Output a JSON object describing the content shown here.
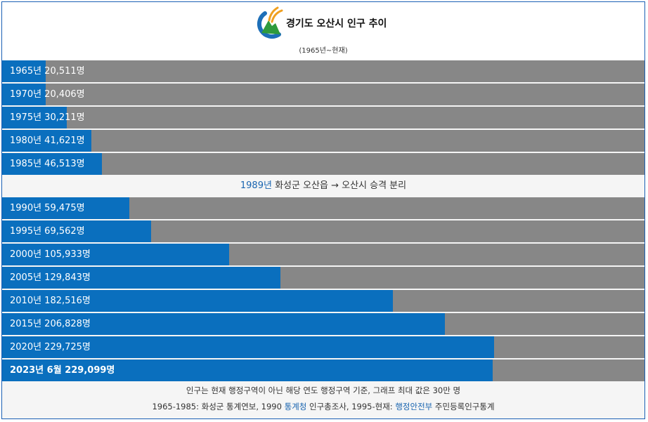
{
  "header": {
    "title": "경기도 오산시 인구 추이",
    "subtitle": "(1965년~현재)"
  },
  "divider": {
    "year_link": "1989년",
    "text": " 화성군 오산읍 → 오산시 승격 분리"
  },
  "footer": {
    "line1": "인구는 현재 행정구역이 아닌 해당 연도 행정구역 기준, 그래프 최대 값은 30만 명",
    "line2_a": "1965-1985: 화성군 통계연보, 1990 ",
    "line2_link1": "통계청",
    "line2_b": " 인구총조사, 1995-현재: ",
    "line2_link2": "행정안전부",
    "line2_c": " 주민등록인구통계"
  },
  "colors": {
    "bar": "#0a6fbe",
    "track": "#878787",
    "link": "#1a65b0",
    "border": "#1a5fb4"
  },
  "chart_data": {
    "type": "bar",
    "orientation": "horizontal",
    "xlim": [
      0,
      300000
    ],
    "categories": [
      "1965년",
      "1970년",
      "1975년",
      "1980년",
      "1985년",
      "1990년",
      "1995년",
      "2000년",
      "2005년",
      "2010년",
      "2015년",
      "2020년",
      "2023년 6월"
    ],
    "values": [
      20511,
      20406,
      30211,
      41621,
      46513,
      59475,
      69562,
      105933,
      129843,
      182516,
      206828,
      229725,
      229099
    ],
    "labels": [
      "1965년 20,511명",
      "1970년 20,406명",
      "1975년 30,211명",
      "1980년 41,621명",
      "1985년 46,513명",
      "1990년 59,475명",
      "1995년 69,562명",
      "2000년 105,933명",
      "2005년 129,843명",
      "2010년 182,516명",
      "2015년 206,828명",
      "2020년 229,725명",
      "2023년 6월 229,099명"
    ]
  }
}
